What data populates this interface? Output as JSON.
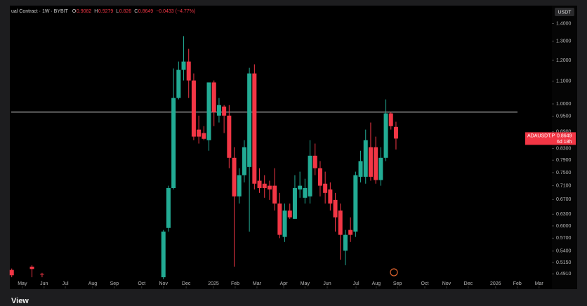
{
  "chart_data": {
    "type": "candlestick",
    "header": {
      "symbol": "ual Contract · 1W · BYBIT",
      "keys": [
        "O",
        "H",
        "L",
        "C"
      ],
      "change": "−0.0433 (−4.77%)"
    },
    "currency": "USDT",
    "price_tag": {
      "symbol": "ADAUSDT.P",
      "countdown": "6d 18h"
    },
    "footer": "View",
    "log_scale": true,
    "up_color": "#22ab94",
    "down_color": "#f23645",
    "hline": 0.966,
    "x": [
      0,
      4,
      6,
      30,
      31,
      32,
      33,
      34,
      35,
      36,
      37,
      38,
      39,
      40,
      41,
      42,
      43,
      44,
      45,
      46,
      47,
      48,
      49,
      50,
      51,
      52,
      53,
      54,
      55,
      56,
      57,
      58,
      59,
      60,
      61,
      62,
      63,
      64,
      65,
      66,
      67,
      68,
      69,
      70,
      71,
      72,
      73,
      74,
      75,
      76
    ],
    "open": [
      0.499,
      0.506,
      0.491,
      0.484,
      0.595,
      0.703,
      1.025,
      1.153,
      1.194,
      1.103,
      0.898,
      0.885,
      0.859,
      1.094,
      0.952,
      0.989,
      0.952,
      0.798,
      0.679,
      0.742,
      0.768,
      1.136,
      0.725,
      0.716,
      0.71,
      0.71,
      0.659,
      0.573,
      0.64,
      0.618,
      0.699,
      0.675,
      0.679,
      0.805,
      0.764,
      0.716,
      0.699,
      0.669,
      0.64,
      0.541,
      0.59,
      0.586,
      0.737,
      0.737,
      0.834,
      0.834,
      0.727,
      0.798,
      0.961,
      0.9082
    ],
    "high": [
      0.502,
      0.509,
      0.493,
      0.59,
      0.71,
      1.16,
      1.194,
      1.328,
      1.259,
      1.136,
      0.952,
      0.911,
      1.094,
      1.103,
      1.025,
      0.995,
      0.995,
      0.834,
      0.764,
      0.859,
      1.163,
      1.18,
      0.764,
      0.742,
      0.725,
      0.764,
      0.689,
      0.659,
      0.659,
      0.742,
      0.753,
      0.731,
      0.859,
      0.847,
      0.787,
      0.753,
      0.72,
      0.689,
      0.659,
      0.59,
      0.622,
      0.753,
      0.822,
      0.898,
      0.925,
      0.872,
      0.834,
      1.019,
      0.966,
      0.9279
    ],
    "low": [
      0.484,
      0.484,
      0.484,
      0.48,
      0.586,
      0.699,
      1.019,
      1.103,
      1.025,
      0.859,
      0.847,
      0.859,
      0.822,
      0.911,
      0.925,
      0.885,
      0.764,
      0.506,
      0.659,
      0.72,
      0.586,
      0.699,
      0.689,
      0.675,
      0.669,
      0.64,
      0.57,
      0.561,
      0.618,
      0.618,
      0.675,
      0.659,
      0.659,
      0.742,
      0.679,
      0.659,
      0.64,
      0.586,
      0.521,
      0.509,
      0.561,
      0.573,
      0.72,
      0.716,
      0.725,
      0.716,
      0.71,
      0.787,
      0.898,
      0.826
    ],
    "close": [
      0.488,
      0.501,
      0.49,
      0.586,
      0.703,
      1.025,
      1.153,
      1.194,
      1.103,
      0.872,
      0.872,
      0.864,
      1.094,
      0.966,
      0.995,
      0.952,
      0.798,
      0.679,
      0.742,
      0.834,
      1.136,
      0.716,
      0.703,
      0.703,
      0.699,
      0.659,
      0.578,
      0.64,
      0.622,
      0.703,
      0.71,
      0.703,
      0.805,
      0.764,
      0.71,
      0.689,
      0.659,
      0.622,
      0.578,
      0.578,
      0.578,
      0.742,
      0.787,
      0.859,
      0.737,
      0.727,
      0.798,
      0.961,
      0.911,
      0.8649
    ],
    "xlim": [
      -0.1,
      106.7
    ],
    "xticks": [
      {
        "value": 2.1,
        "label": "May"
      },
      {
        "value": 6.4,
        "label": "Jun"
      },
      {
        "value": 10.6,
        "label": "Jul"
      },
      {
        "value": 16.0,
        "label": "Aug"
      },
      {
        "value": 20.3,
        "label": "Sep"
      },
      {
        "value": 25.7,
        "label": "Oct"
      },
      {
        "value": 30.0,
        "label": "Nov"
      },
      {
        "value": 34.5,
        "label": "Dec"
      },
      {
        "value": 39.9,
        "label": "2025"
      },
      {
        "value": 44.2,
        "label": "Feb"
      },
      {
        "value": 48.5,
        "label": "Mar"
      },
      {
        "value": 53.8,
        "label": "Apr"
      },
      {
        "value": 58.0,
        "label": "May"
      },
      {
        "value": 62.4,
        "label": "Jun"
      },
      {
        "value": 68.1,
        "label": "Jul"
      },
      {
        "value": 72.1,
        "label": "Aug"
      },
      {
        "value": 76.3,
        "label": "Sep"
      },
      {
        "value": 81.7,
        "label": "Oct"
      },
      {
        "value": 86.0,
        "label": "Nov"
      },
      {
        "value": 90.3,
        "label": "Dec"
      },
      {
        "value": 95.7,
        "label": "2026"
      },
      {
        "value": 100.0,
        "label": "Feb"
      },
      {
        "value": 104.3,
        "label": "Mar"
      }
    ],
    "ylim": [
      0.477,
      1.5
    ],
    "yticks": [
      {
        "value": 1.4,
        "label": "1.4000"
      },
      {
        "value": 1.3,
        "label": "1.3000"
      },
      {
        "value": 1.2,
        "label": "1.2000"
      },
      {
        "value": 1.1,
        "label": "1.1000"
      },
      {
        "value": 1.0,
        "label": "1.0000"
      },
      {
        "value": 0.95,
        "label": "0.9500"
      },
      {
        "value": 0.89,
        "label": "0.8900"
      },
      {
        "value": 0.83,
        "label": "0.8300"
      },
      {
        "value": 0.79,
        "label": "0.7900"
      },
      {
        "value": 0.75,
        "label": "0.7500"
      },
      {
        "value": 0.71,
        "label": "0.7100"
      },
      {
        "value": 0.67,
        "label": "0.6700"
      },
      {
        "value": 0.63,
        "label": "0.6300"
      },
      {
        "value": 0.6,
        "label": "0.6000"
      },
      {
        "value": 0.57,
        "label": "0.5700"
      },
      {
        "value": 0.54,
        "label": "0.5400"
      },
      {
        "value": 0.515,
        "label": "0.5150"
      },
      {
        "value": 0.491,
        "label": "0.4910"
      }
    ]
  }
}
